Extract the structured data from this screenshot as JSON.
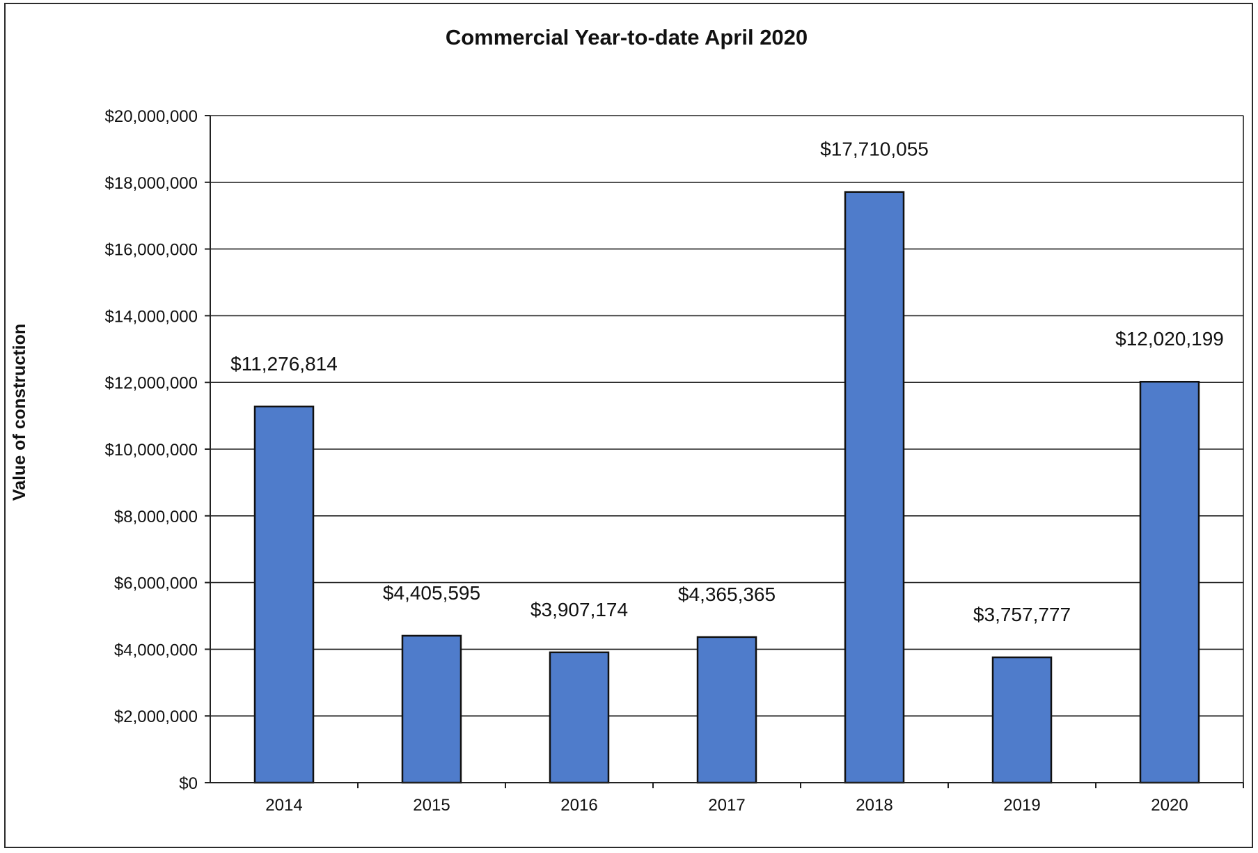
{
  "chart_data": {
    "type": "bar",
    "title": "Commercial Year-to-date April 2020",
    "xlabel": "",
    "ylabel": "Value of construction",
    "categories": [
      "2014",
      "2015",
      "2016",
      "2017",
      "2018",
      "2019",
      "2020"
    ],
    "values": [
      11276814,
      4405595,
      3907174,
      4365365,
      17710055,
      3757777,
      12020199
    ],
    "data_labels": [
      "$11,276,814",
      "$4,405,595",
      "$3,907,174",
      "$4,365,365",
      "$17,710,055",
      "$3,757,777",
      "$12,020,199"
    ],
    "ylim": [
      0,
      20000000
    ],
    "yticks": [
      0,
      2000000,
      4000000,
      6000000,
      8000000,
      10000000,
      12000000,
      14000000,
      16000000,
      18000000,
      20000000
    ],
    "ytick_labels": [
      "$0",
      "$2,000,000",
      "$4,000,000",
      "$6,000,000",
      "$8,000,000",
      "$10,000,000",
      "$12,000,000",
      "$14,000,000",
      "$16,000,000",
      "$18,000,000",
      "$20,000,000"
    ],
    "grid": true,
    "legend": "none",
    "colors": {
      "bar": "#4f7ccb",
      "bar_outline": "#111111",
      "grid": "#222222"
    }
  }
}
